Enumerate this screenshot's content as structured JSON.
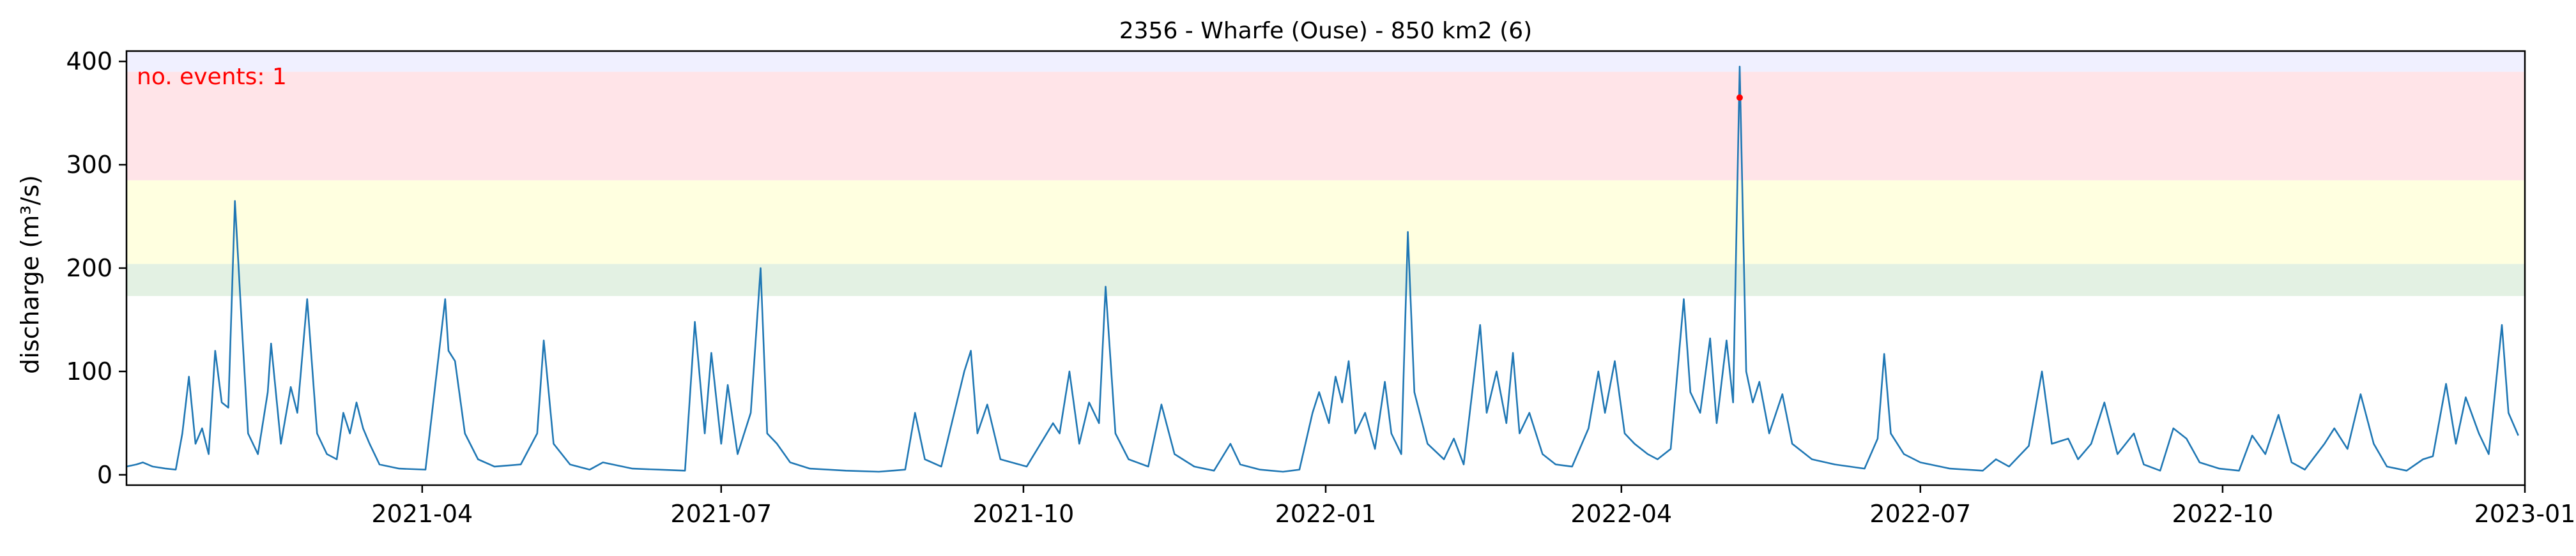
{
  "chart_data": {
    "type": "line",
    "title": "2356 - Wharfe (Ouse) - 850 km2 (6)",
    "xlabel": "",
    "ylabel": "discharge (m³/s)",
    "xlim": [
      "2021-01-01",
      "2023-01-01"
    ],
    "ylim": [
      -10,
      410
    ],
    "x_ticks": [
      "2021-04",
      "2021-07",
      "2021-10",
      "2022-01",
      "2022-04",
      "2022-07",
      "2022-10",
      "2023-01"
    ],
    "y_ticks": [
      0,
      100,
      200,
      300,
      400
    ],
    "annotation": {
      "text": "no. events: 1",
      "color": "#ff0000"
    },
    "threshold_bands": [
      {
        "from": 173,
        "to": 204,
        "color": "#e3f1e3"
      },
      {
        "from": 204,
        "to": 285,
        "color": "#ffffe0"
      },
      {
        "from": 285,
        "to": 390,
        "color": "#ffe4e8"
      },
      {
        "from": 390,
        "to": 410,
        "color": "#f0f0ff"
      }
    ],
    "series": [
      {
        "color": "#1f77b4",
        "points": [
          [
            "2021-01-01",
            8
          ],
          [
            "2021-01-04",
            10
          ],
          [
            "2021-01-06",
            12
          ],
          [
            "2021-01-09",
            8
          ],
          [
            "2021-01-13",
            6
          ],
          [
            "2021-01-16",
            5
          ],
          [
            "2021-01-18",
            40
          ],
          [
            "2021-01-20",
            95
          ],
          [
            "2021-01-22",
            30
          ],
          [
            "2021-01-24",
            45
          ],
          [
            "2021-01-26",
            20
          ],
          [
            "2021-01-28",
            120
          ],
          [
            "2021-01-30",
            70
          ],
          [
            "2021-02-01",
            65
          ],
          [
            "2021-02-03",
            265
          ],
          [
            "2021-02-05",
            150
          ],
          [
            "2021-02-07",
            40
          ],
          [
            "2021-02-10",
            20
          ],
          [
            "2021-02-13",
            80
          ],
          [
            "2021-02-14",
            127
          ],
          [
            "2021-02-17",
            30
          ],
          [
            "2021-02-20",
            85
          ],
          [
            "2021-02-22",
            60
          ],
          [
            "2021-02-25",
            170
          ],
          [
            "2021-02-28",
            40
          ],
          [
            "2021-03-03",
            20
          ],
          [
            "2021-03-06",
            15
          ],
          [
            "2021-03-08",
            60
          ],
          [
            "2021-03-10",
            40
          ],
          [
            "2021-03-12",
            70
          ],
          [
            "2021-03-14",
            45
          ],
          [
            "2021-03-16",
            30
          ],
          [
            "2021-03-19",
            10
          ],
          [
            "2021-03-25",
            6
          ],
          [
            "2021-04-02",
            5
          ],
          [
            "2021-04-08",
            170
          ],
          [
            "2021-04-09",
            120
          ],
          [
            "2021-04-11",
            110
          ],
          [
            "2021-04-14",
            40
          ],
          [
            "2021-04-18",
            15
          ],
          [
            "2021-04-23",
            8
          ],
          [
            "2021-05-01",
            10
          ],
          [
            "2021-05-06",
            40
          ],
          [
            "2021-05-08",
            130
          ],
          [
            "2021-05-11",
            30
          ],
          [
            "2021-05-16",
            10
          ],
          [
            "2021-05-22",
            5
          ],
          [
            "2021-05-26",
            12
          ],
          [
            "2021-06-04",
            6
          ],
          [
            "2021-06-12",
            5
          ],
          [
            "2021-06-20",
            4
          ],
          [
            "2021-06-23",
            148
          ],
          [
            "2021-06-26",
            40
          ],
          [
            "2021-06-28",
            118
          ],
          [
            "2021-07-01",
            30
          ],
          [
            "2021-07-03",
            87
          ],
          [
            "2021-07-06",
            20
          ],
          [
            "2021-07-10",
            60
          ],
          [
            "2021-07-13",
            200
          ],
          [
            "2021-07-15",
            40
          ],
          [
            "2021-07-18",
            30
          ],
          [
            "2021-07-22",
            12
          ],
          [
            "2021-07-28",
            6
          ],
          [
            "2021-08-08",
            4
          ],
          [
            "2021-08-18",
            3
          ],
          [
            "2021-08-26",
            5
          ],
          [
            "2021-08-29",
            60
          ],
          [
            "2021-09-01",
            15
          ],
          [
            "2021-09-06",
            8
          ],
          [
            "2021-09-13",
            100
          ],
          [
            "2021-09-15",
            120
          ],
          [
            "2021-09-17",
            40
          ],
          [
            "2021-09-20",
            68
          ],
          [
            "2021-09-24",
            15
          ],
          [
            "2021-10-02",
            8
          ],
          [
            "2021-10-10",
            50
          ],
          [
            "2021-10-12",
            40
          ],
          [
            "2021-10-15",
            100
          ],
          [
            "2021-10-18",
            30
          ],
          [
            "2021-10-21",
            70
          ],
          [
            "2021-10-24",
            50
          ],
          [
            "2021-10-26",
            182
          ],
          [
            "2021-10-29",
            40
          ],
          [
            "2021-11-02",
            15
          ],
          [
            "2021-11-08",
            8
          ],
          [
            "2021-11-12",
            68
          ],
          [
            "2021-11-16",
            20
          ],
          [
            "2021-11-22",
            8
          ],
          [
            "2021-11-28",
            4
          ],
          [
            "2021-12-03",
            30
          ],
          [
            "2021-12-06",
            10
          ],
          [
            "2021-12-12",
            5
          ],
          [
            "2021-12-19",
            3
          ],
          [
            "2021-12-24",
            5
          ],
          [
            "2021-12-28",
            60
          ],
          [
            "2021-12-30",
            80
          ],
          [
            "2022-01-02",
            50
          ],
          [
            "2022-01-04",
            95
          ],
          [
            "2022-01-06",
            70
          ],
          [
            "2022-01-08",
            110
          ],
          [
            "2022-01-10",
            40
          ],
          [
            "2022-01-13",
            60
          ],
          [
            "2022-01-16",
            25
          ],
          [
            "2022-01-19",
            90
          ],
          [
            "2022-01-21",
            40
          ],
          [
            "2022-01-24",
            20
          ],
          [
            "2022-01-26",
            235
          ],
          [
            "2022-01-28",
            80
          ],
          [
            "2022-02-01",
            30
          ],
          [
            "2022-02-06",
            15
          ],
          [
            "2022-02-09",
            35
          ],
          [
            "2022-02-12",
            10
          ],
          [
            "2022-02-17",
            145
          ],
          [
            "2022-02-19",
            60
          ],
          [
            "2022-02-22",
            100
          ],
          [
            "2022-02-25",
            50
          ],
          [
            "2022-02-27",
            118
          ],
          [
            "2022-03-01",
            40
          ],
          [
            "2022-03-04",
            60
          ],
          [
            "2022-03-08",
            20
          ],
          [
            "2022-03-12",
            10
          ],
          [
            "2022-03-17",
            8
          ],
          [
            "2022-03-22",
            45
          ],
          [
            "2022-03-25",
            100
          ],
          [
            "2022-03-27",
            60
          ],
          [
            "2022-03-30",
            110
          ],
          [
            "2022-04-02",
            40
          ],
          [
            "2022-04-05",
            30
          ],
          [
            "2022-04-09",
            20
          ],
          [
            "2022-04-12",
            15
          ],
          [
            "2022-04-16",
            25
          ],
          [
            "2022-04-20",
            170
          ],
          [
            "2022-04-22",
            80
          ],
          [
            "2022-04-25",
            60
          ],
          [
            "2022-04-28",
            132
          ],
          [
            "2022-04-30",
            50
          ],
          [
            "2022-05-03",
            130
          ],
          [
            "2022-05-05",
            70
          ],
          [
            "2022-05-07",
            395
          ],
          [
            "2022-05-09",
            100
          ],
          [
            "2022-05-11",
            70
          ],
          [
            "2022-05-13",
            90
          ],
          [
            "2022-05-16",
            40
          ],
          [
            "2022-05-20",
            78
          ],
          [
            "2022-05-23",
            30
          ],
          [
            "2022-05-29",
            15
          ],
          [
            "2022-06-05",
            10
          ],
          [
            "2022-06-14",
            6
          ],
          [
            "2022-06-18",
            35
          ],
          [
            "2022-06-20",
            117
          ],
          [
            "2022-06-22",
            40
          ],
          [
            "2022-06-26",
            20
          ],
          [
            "2022-07-01",
            12
          ],
          [
            "2022-07-10",
            6
          ],
          [
            "2022-07-20",
            4
          ],
          [
            "2022-07-24",
            15
          ],
          [
            "2022-07-28",
            8
          ],
          [
            "2022-08-03",
            28
          ],
          [
            "2022-08-07",
            100
          ],
          [
            "2022-08-10",
            30
          ],
          [
            "2022-08-15",
            35
          ],
          [
            "2022-08-18",
            15
          ],
          [
            "2022-08-22",
            30
          ],
          [
            "2022-08-26",
            70
          ],
          [
            "2022-08-30",
            20
          ],
          [
            "2022-09-04",
            40
          ],
          [
            "2022-09-07",
            10
          ],
          [
            "2022-09-12",
            4
          ],
          [
            "2022-09-16",
            45
          ],
          [
            "2022-09-20",
            35
          ],
          [
            "2022-09-24",
            12
          ],
          [
            "2022-09-30",
            6
          ],
          [
            "2022-10-06",
            4
          ],
          [
            "2022-10-10",
            38
          ],
          [
            "2022-10-14",
            20
          ],
          [
            "2022-10-18",
            58
          ],
          [
            "2022-10-22",
            12
          ],
          [
            "2022-10-26",
            5
          ],
          [
            "2022-11-01",
            30
          ],
          [
            "2022-11-04",
            45
          ],
          [
            "2022-11-08",
            25
          ],
          [
            "2022-11-12",
            78
          ],
          [
            "2022-11-16",
            30
          ],
          [
            "2022-11-20",
            8
          ],
          [
            "2022-11-26",
            4
          ],
          [
            "2022-12-01",
            15
          ],
          [
            "2022-12-04",
            18
          ],
          [
            "2022-12-08",
            88
          ],
          [
            "2022-12-11",
            30
          ],
          [
            "2022-12-14",
            75
          ],
          [
            "2022-12-18",
            40
          ],
          [
            "2022-12-21",
            20
          ],
          [
            "2022-12-25",
            145
          ],
          [
            "2022-12-27",
            60
          ],
          [
            "2022-12-30",
            38
          ]
        ]
      }
    ],
    "event_marker": {
      "x": "2022-05-07",
      "y": 365,
      "color": "#ff0000"
    }
  }
}
